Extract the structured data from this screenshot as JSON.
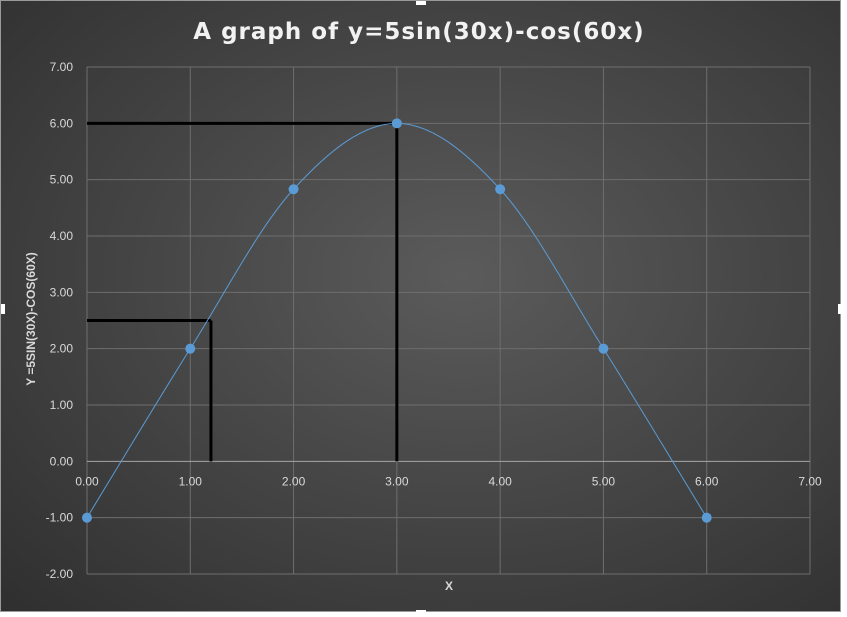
{
  "chart_data": {
    "type": "scatter",
    "title": "A graph of y=5sin(30x)-cos(60x)",
    "xlabel": "X",
    "ylabel": "Y =5SIN(30X)-COS(60X)",
    "xlim": [
      0,
      7
    ],
    "ylim": [
      -2,
      7
    ],
    "x_ticks": [
      "0.00",
      "1.00",
      "2.00",
      "3.00",
      "4.00",
      "5.00",
      "6.00",
      "7.00"
    ],
    "y_ticks": [
      "-2.00",
      "-1.00",
      "0.00",
      "1.00",
      "2.00",
      "3.00",
      "4.00",
      "5.00",
      "6.00",
      "7.00"
    ],
    "grid": true,
    "legend": "none",
    "series": [
      {
        "x": [
          0,
          1,
          2,
          3,
          4,
          5,
          6
        ],
        "y": [
          -1,
          2,
          4.83,
          6,
          4.83,
          2,
          -1
        ],
        "line": "smooth",
        "color": "#5b9bd5"
      }
    ],
    "annotation_lines": [
      {
        "x": 1.2,
        "y": 2.5,
        "color": "#000000"
      },
      {
        "x": 3.0,
        "y": 6.0,
        "color": "#000000"
      }
    ]
  }
}
